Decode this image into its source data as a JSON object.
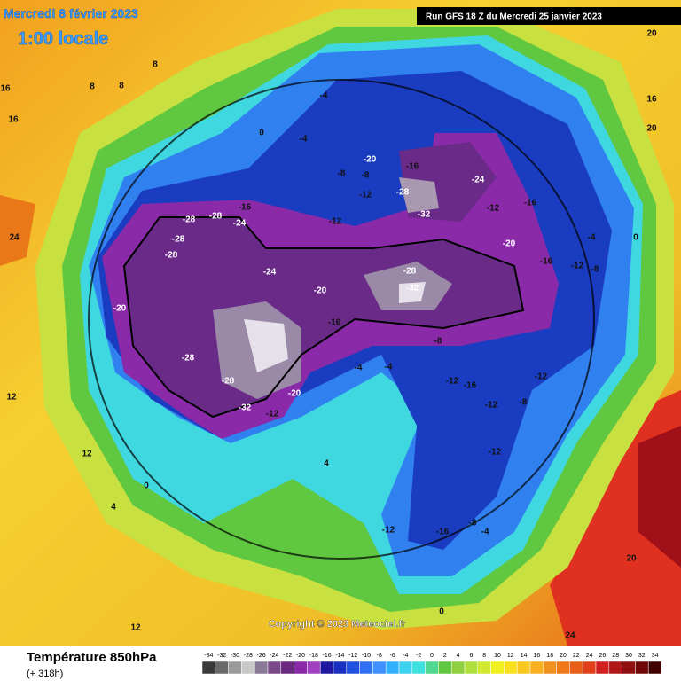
{
  "header": {
    "date": "Mercredi 8 février 2023",
    "time": "1:00 locale",
    "run": "Run GFS 18 Z du Mercredi 25 janvier 2023"
  },
  "copyright": "Copyright © 2023 Meteociel.fr",
  "legend": {
    "title": "Température 850hPa",
    "subtitle": "(+ 318h)",
    "ticks": [
      -34,
      -32,
      -30,
      -28,
      -26,
      -24,
      -22,
      -20,
      -18,
      -16,
      -14,
      -12,
      -10,
      -8,
      -6,
      -4,
      -2,
      0,
      2,
      4,
      6,
      8,
      10,
      12,
      14,
      16,
      18,
      20,
      22,
      24,
      26,
      28,
      30,
      32,
      34
    ]
  },
  "map": {
    "labels": [
      -28,
      -28,
      -16,
      -24,
      -28,
      -28,
      -20,
      -28,
      -28,
      -32,
      -20,
      -12,
      -24,
      -20,
      -16,
      -12,
      -28,
      -32,
      -20,
      -8,
      -12,
      -28,
      -32,
      -16,
      -24,
      -16,
      -12,
      -20,
      -16,
      -12,
      -8,
      -4,
      0,
      -8,
      -4,
      -12,
      -16,
      -12,
      -8,
      -4,
      -16,
      -12,
      -8,
      0,
      0,
      4,
      4,
      8,
      8,
      8,
      12,
      16,
      16,
      16,
      20,
      20,
      20,
      24,
      24,
      12,
      12,
      -4,
      -4,
      0,
      -8,
      -4,
      -12,
      -12
    ]
  }
}
